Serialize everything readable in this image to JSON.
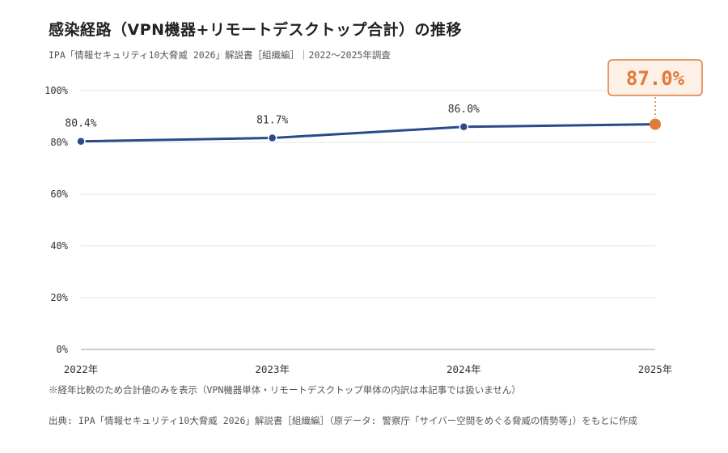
{
  "title": "感染経路（VPN機器+リモートデスクトップ合計）の推移",
  "subtitle": "IPA「情報セキュリティ10大脅威 2026」解説書［組織編］｜2022〜2025年調査",
  "note": "※経年比較のため合計値のみを表示（VPN機器単体・リモートデスクトップ単体の内訳は本記事では扱いません）",
  "source": "出典: IPA「情報セキュリティ10大脅威 2026」解説書［組織編］（原データ: 警察庁「サイバー空間をめぐる脅威の情勢等」）をもとに作成",
  "colors": {
    "line": "#2b4a8b",
    "highlight": "#e07b39",
    "highlight_bg": "#fdf0e6",
    "grid": "#e6e6e6",
    "axis": "#bbbbbb",
    "text": "#333333"
  },
  "chart_data": {
    "type": "line",
    "categories": [
      "2022年",
      "2023年",
      "2024年",
      "2025年"
    ],
    "values": [
      80.4,
      81.7,
      86.0,
      87.0
    ],
    "data_labels": [
      "80.4%",
      "81.7%",
      "86.0%",
      "87.0%"
    ],
    "highlight_index": 3,
    "ylim": [
      0,
      100
    ],
    "yticks": [
      0,
      20,
      40,
      60,
      80,
      100
    ],
    "ytick_labels": [
      "0%",
      "20%",
      "40%",
      "60%",
      "80%",
      "100%"
    ],
    "grid": true,
    "legend": "none"
  }
}
